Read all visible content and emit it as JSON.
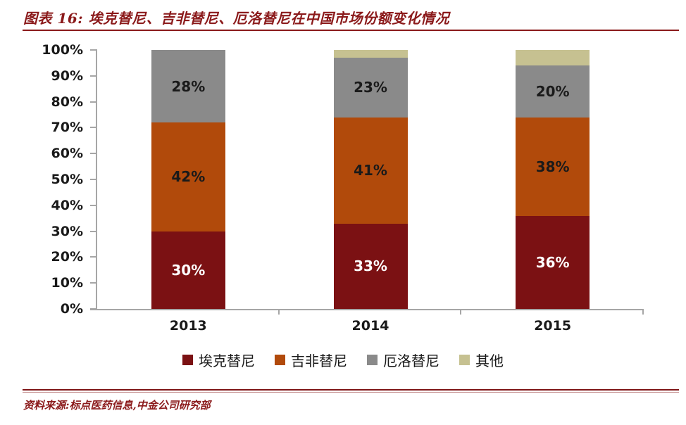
{
  "header": {
    "title": "图表 16: 埃克替尼、吉非替尼、厄洛替尼在中国市场份额变化情况"
  },
  "footer": {
    "source": "资料来源:标点医药信息,中金公司研究部"
  },
  "colors": {
    "accent_red": "#8b1a1b",
    "axis_gray": "#a6a6a6",
    "label_black": "#1a1a1a",
    "label_white": "#ffffff"
  },
  "chart_data": {
    "type": "bar",
    "stacked": true,
    "title": "埃克替尼、吉非替尼、厄洛替尼在中国市场份额变化情况",
    "categories": [
      "2013",
      "2014",
      "2015"
    ],
    "series": [
      {
        "name": "埃克替尼",
        "color": "#7b1113",
        "values": [
          30,
          33,
          36
        ],
        "label_color": "#ffffff",
        "show_labels": true
      },
      {
        "name": "吉非替尼",
        "color": "#b14a0b",
        "values": [
          42,
          41,
          38
        ],
        "label_color": "#1a1a1a",
        "show_labels": true
      },
      {
        "name": "厄洛替尼",
        "color": "#8a8a8a",
        "values": [
          28,
          23,
          20
        ],
        "label_color": "#1a1a1a",
        "show_labels": true
      },
      {
        "name": "其他",
        "color": "#c6c191",
        "values": [
          0,
          3,
          6
        ],
        "label_color": "#1a1a1a",
        "show_labels": false
      }
    ],
    "y_ticks": [
      "0%",
      "10%",
      "20%",
      "30%",
      "40%",
      "50%",
      "60%",
      "70%",
      "80%",
      "90%",
      "100%"
    ],
    "ylim": [
      0,
      100
    ],
    "grid": false,
    "legend_position": "bottom"
  }
}
